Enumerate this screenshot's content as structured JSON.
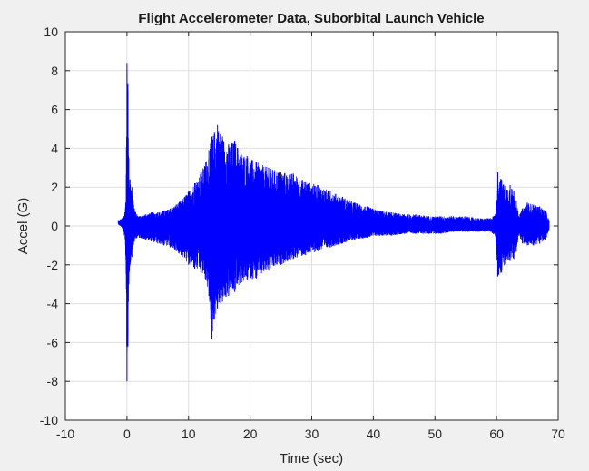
{
  "chart_data": {
    "type": "line",
    "title": "Flight Accelerometer Data, Suborbital Launch Vehicle",
    "xlabel": "Time (sec)",
    "ylabel": "Accel (G)",
    "xlim": [
      -10,
      70
    ],
    "ylim": [
      -10,
      10
    ],
    "xticks": [
      -10,
      0,
      10,
      20,
      30,
      40,
      50,
      60,
      70
    ],
    "yticks": [
      -10,
      -8,
      -6,
      -4,
      -2,
      0,
      2,
      4,
      6,
      8,
      10
    ],
    "xtick_labels": [
      "-10",
      "0",
      "10",
      "20",
      "30",
      "40",
      "50",
      "60",
      "70"
    ],
    "ytick_labels": [
      "-10",
      "-8",
      "-6",
      "-4",
      "-2",
      "0",
      "2",
      "4",
      "6",
      "8",
      "10"
    ],
    "grid": true,
    "line_color": "#0000ff",
    "series": [
      {
        "type": "envelope",
        "x": [
          -1.4,
          -1.0,
          -0.5,
          -0.2,
          0.0,
          0.15,
          0.3,
          0.5,
          0.8,
          1.2,
          1.6,
          2.0,
          3,
          4,
          5,
          6,
          7,
          8,
          9,
          10,
          11,
          12,
          12.8,
          13.3,
          13.8,
          14.2,
          14.7,
          15.5,
          16.5,
          17.5,
          18.5,
          19.5,
          21,
          23,
          25,
          27,
          29,
          31,
          33,
          35,
          37,
          39,
          41,
          43,
          45,
          47,
          49,
          51,
          53,
          55,
          57,
          59,
          59.8,
          60.2,
          60.8,
          61.5,
          62.2,
          62.8,
          63.2,
          63.6,
          64.2,
          65,
          66,
          67,
          68,
          68.5
        ],
        "upper": [
          0.3,
          0.35,
          0.5,
          1.2,
          8.4,
          7.3,
          3.5,
          2.4,
          2.0,
          0.9,
          0.6,
          0.5,
          0.6,
          0.7,
          0.7,
          0.8,
          0.9,
          1.1,
          1.4,
          1.8,
          2.2,
          2.8,
          3.3,
          3.9,
          4.6,
          4.8,
          5.2,
          4.6,
          4.2,
          4.4,
          3.8,
          3.6,
          3.3,
          3.0,
          2.8,
          2.7,
          2.3,
          2.1,
          1.8,
          1.5,
          1.2,
          1.0,
          0.8,
          0.7,
          0.6,
          0.6,
          0.5,
          0.5,
          0.5,
          0.5,
          0.4,
          0.4,
          0.6,
          2.8,
          2.4,
          2.0,
          2.1,
          1.8,
          1.3,
          0.5,
          0.9,
          1.2,
          1.1,
          1.0,
          0.8,
          0.3
        ],
        "lower": [
          0.1,
          0.0,
          -0.3,
          -1.5,
          -8.0,
          -6.2,
          -3.0,
          -2.0,
          -1.6,
          -0.8,
          -0.6,
          -0.6,
          -0.7,
          -0.8,
          -0.9,
          -1.0,
          -1.1,
          -1.3,
          -1.6,
          -2.0,
          -2.2,
          -2.4,
          -2.8,
          -3.6,
          -5.8,
          -4.8,
          -4.3,
          -3.9,
          -3.6,
          -3.4,
          -3.0,
          -2.8,
          -2.7,
          -2.3,
          -2.0,
          -1.7,
          -1.5,
          -1.3,
          -1.1,
          -0.9,
          -0.7,
          -0.6,
          -0.5,
          -0.5,
          -0.4,
          -0.4,
          -0.4,
          -0.4,
          -0.3,
          -0.3,
          -0.3,
          -0.3,
          -0.5,
          -2.6,
          -2.4,
          -2.0,
          -1.8,
          -1.7,
          -1.3,
          -0.5,
          -0.9,
          -1.0,
          -1.0,
          -0.9,
          -0.7,
          -0.2
        ]
      }
    ]
  }
}
